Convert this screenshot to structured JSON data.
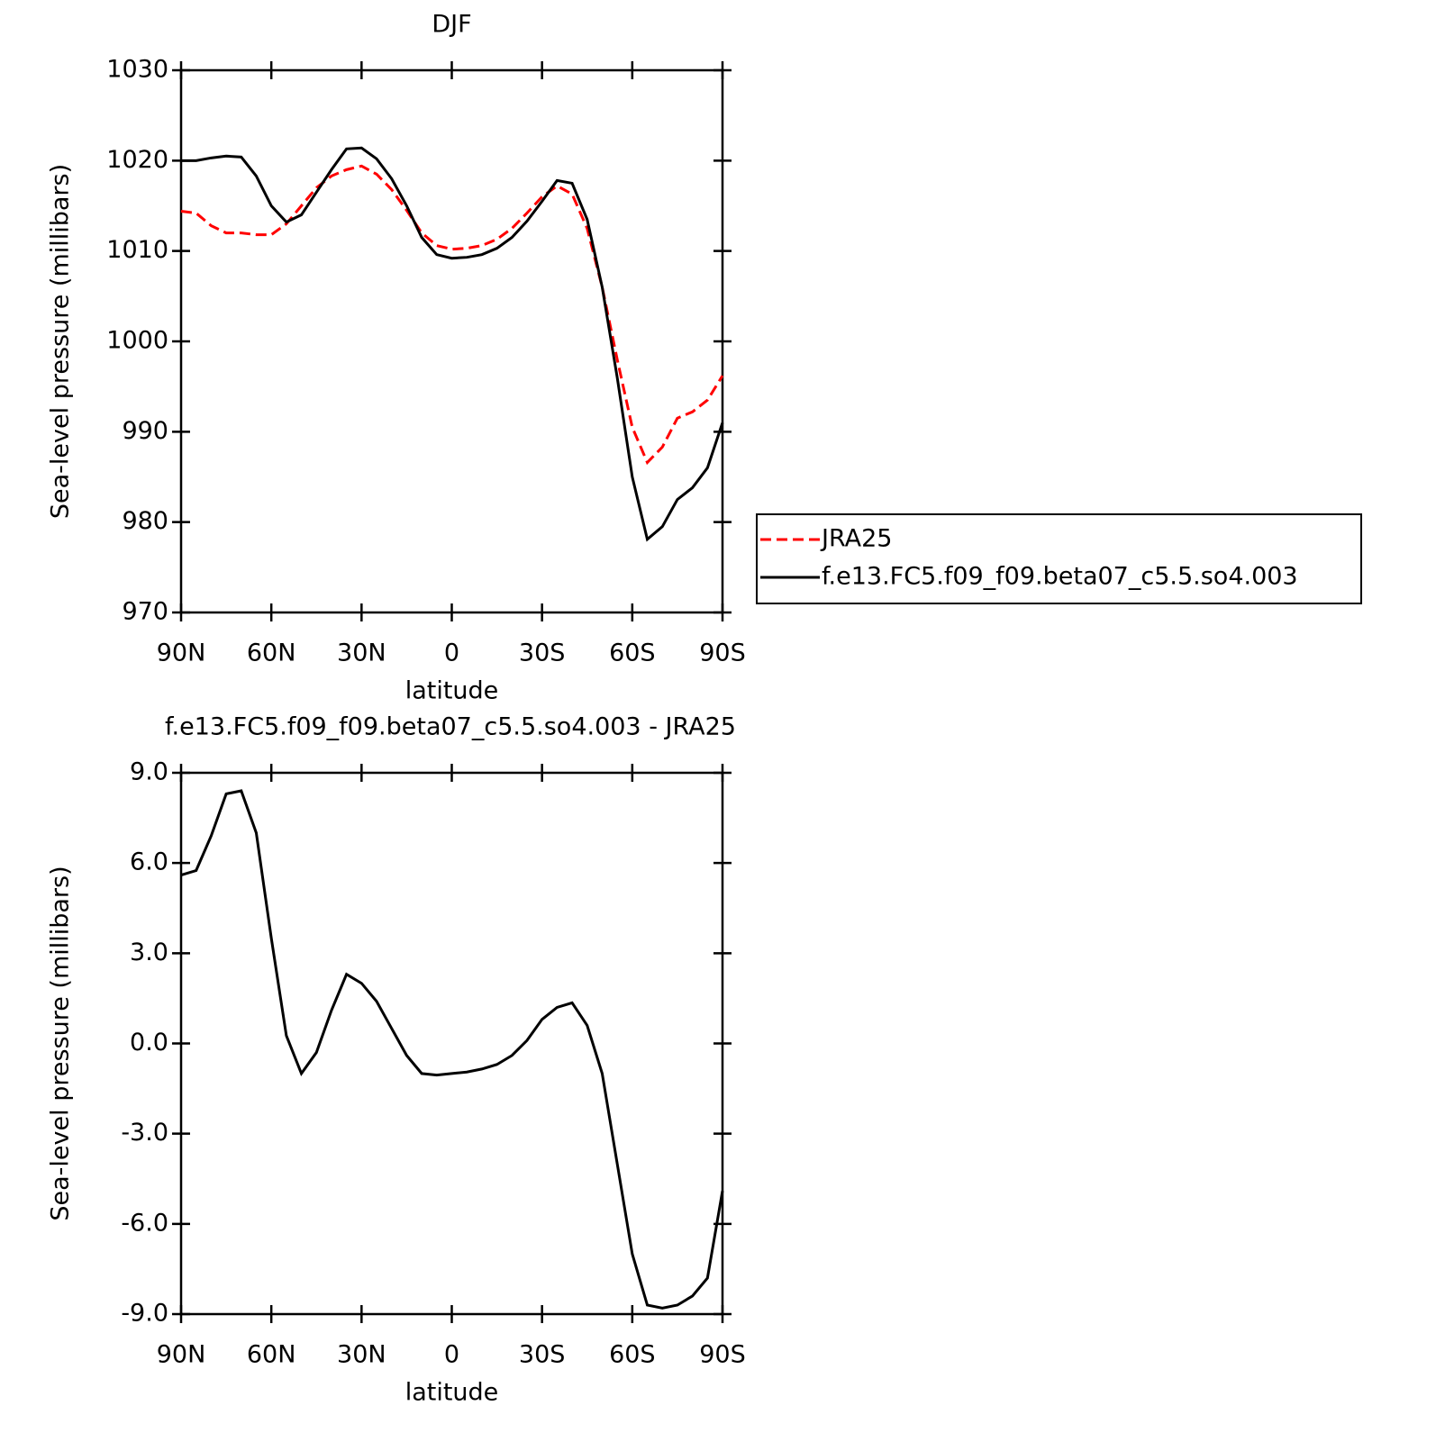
{
  "chart_data": [
    {
      "type": "line",
      "title": "DJF",
      "xlabel": "latitude",
      "ylabel": "Sea-level pressure (millibars)",
      "x": [
        90,
        85,
        80,
        75,
        70,
        65,
        60,
        55,
        50,
        45,
        40,
        35,
        30,
        25,
        20,
        15,
        10,
        5,
        0,
        -5,
        -10,
        -15,
        -20,
        -25,
        -30,
        -35,
        -40,
        -45,
        -50,
        -55,
        -60,
        -65,
        -70,
        -75,
        -80,
        -85,
        -90
      ],
      "series": [
        {
          "name": "JRA25",
          "color": "#ff0000",
          "style": "dashed",
          "values": [
            1014.4,
            1014.2,
            1012.8,
            1012,
            1012,
            1011.8,
            1011.8,
            1013,
            1015,
            1017,
            1018.3,
            1019,
            1019.4,
            1018.5,
            1016.8,
            1014.5,
            1012,
            1010.6,
            1010.2,
            1010.3,
            1010.6,
            1011.3,
            1012.5,
            1014.2,
            1016,
            1017.2,
            1016.3,
            1012.5,
            1006,
            998,
            990.5,
            986.6,
            988.3,
            991.5,
            992.2,
            993.5,
            996.2
          ]
        },
        {
          "name": "f.e13.FC5.f09_f09.beta07_c5.5.so4.003",
          "color": "#000000",
          "style": "solid",
          "values": [
            1020,
            1020,
            1020.3,
            1020.5,
            1020.4,
            1018.3,
            1015,
            1013.2,
            1014,
            1016.5,
            1019,
            1021.3,
            1021.4,
            1020.2,
            1018,
            1015,
            1011.5,
            1009.6,
            1009.2,
            1009.3,
            1009.6,
            1010.3,
            1011.5,
            1013.3,
            1015.5,
            1017.8,
            1017.5,
            1013.5,
            1006,
            996,
            985,
            978.1,
            979.5,
            982.5,
            983.8,
            986,
            991
          ]
        }
      ],
      "xlim": [
        90,
        -90
      ],
      "xticks": [
        {
          "value": 90,
          "label": "90N"
        },
        {
          "value": 60,
          "label": "60N"
        },
        {
          "value": 30,
          "label": "30N"
        },
        0,
        {
          "value": -30,
          "label": "30S"
        },
        {
          "value": -60,
          "label": "60S"
        },
        {
          "value": -90,
          "label": "90S"
        }
      ],
      "ylim": [
        970,
        1030
      ],
      "yticks": [
        970,
        980,
        990,
        1000,
        1010,
        1020,
        1030
      ],
      "legend": "outside-right"
    },
    {
      "type": "line",
      "title": "f.e13.FC5.f09_f09.beta07_c5.5.so4.003 - JRA25",
      "xlabel": "latitude",
      "ylabel": "Sea-level pressure (millibars)",
      "x": [
        90,
        85,
        80,
        75,
        70,
        65,
        60,
        55,
        50,
        45,
        40,
        35,
        30,
        25,
        20,
        15,
        10,
        5,
        0,
        -5,
        -10,
        -15,
        -20,
        -25,
        -30,
        -35,
        -40,
        -45,
        -50,
        -55,
        -60,
        -65,
        -70,
        -75,
        -80,
        -85,
        -90
      ],
      "series": [
        {
          "color": "#000000",
          "style": "solid",
          "values": [
            5.6,
            5.75,
            6.9,
            8.3,
            8.4,
            7.0,
            3.5,
            0.26,
            -1.0,
            -0.3,
            1.1,
            2.3,
            2.0,
            1.4,
            0.5,
            -0.4,
            -1.0,
            -1.05,
            -1.0,
            -0.95,
            -0.85,
            -0.7,
            -0.4,
            0.1,
            0.8,
            1.2,
            1.35,
            0.6,
            -1.0,
            -4.0,
            -7.0,
            -8.7,
            -8.8,
            -8.7,
            -8.4,
            -7.8,
            -4.9
          ]
        }
      ],
      "xlim": [
        90,
        -90
      ],
      "xticks": [
        {
          "value": 90,
          "label": "90N"
        },
        {
          "value": 60,
          "label": "60N"
        },
        {
          "value": 30,
          "label": "30N"
        },
        0,
        {
          "value": -30,
          "label": "30S"
        },
        {
          "value": -60,
          "label": "60S"
        },
        {
          "value": -90,
          "label": "90S"
        }
      ],
      "ylim": [
        -9,
        9
      ],
      "yticks": [
        {
          "value": -9,
          "label": "-9.0"
        },
        {
          "value": -6,
          "label": "-6.0"
        },
        {
          "value": -3,
          "label": "-3.0"
        },
        {
          "value": 0,
          "label": "0.0"
        },
        {
          "value": 3,
          "label": "3.0"
        },
        {
          "value": 6,
          "label": "6.0"
        },
        {
          "value": 9,
          "label": "9.0"
        }
      ]
    }
  ]
}
